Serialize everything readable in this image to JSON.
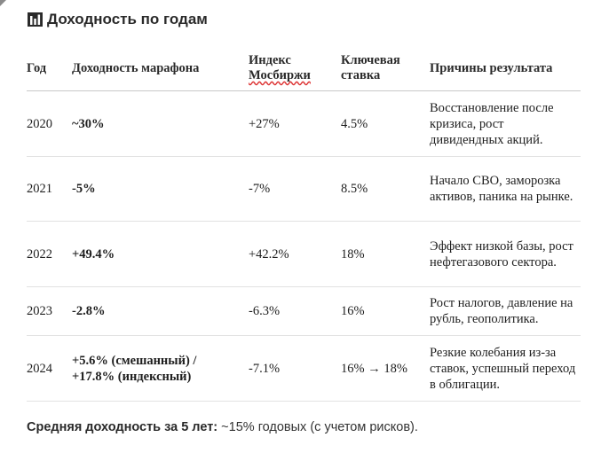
{
  "heading": {
    "icon": "bar-chart-icon",
    "title": "Доходность по годам"
  },
  "table": {
    "headers": {
      "year": "Год",
      "marathon": "Доходность марафона",
      "index": "Индекс Мосбиржи",
      "rate": "Ключевая ставка",
      "reasons": "Причины результата"
    },
    "rows": [
      {
        "year": "2020",
        "marathon": "~30%",
        "index": "+27%",
        "rate": "4.5%",
        "reasons": "Восстановление после кризиса, рост дивидендных акций."
      },
      {
        "year": "2021",
        "marathon": "-5%",
        "index": "-7%",
        "rate": "8.5%",
        "reasons": "Начало СВО, заморозка активов, паника на рынке."
      },
      {
        "year": "2022",
        "marathon": "+49.4%",
        "index": "+42.2%",
        "rate": "18%",
        "reasons": "Эффект низкой базы, рост нефтегазового сектора."
      },
      {
        "year": "2023",
        "marathon": "-2.8%",
        "index": "-6.3%",
        "rate": "16%",
        "reasons": "Рост налогов, давление на рубль, геополитика."
      },
      {
        "year": "2024",
        "marathon": "+5.6% (смешанный) / +17.8% (индексный)",
        "index": "-7.1%",
        "rate": "16% → 18%",
        "reasons": "Резкие колебания из-за ставок, успешный переход в облигации."
      }
    ]
  },
  "summary": {
    "label": "Средняя доходность за 5 лет:",
    "value": "~15% годовых (с учетом рисков)."
  }
}
